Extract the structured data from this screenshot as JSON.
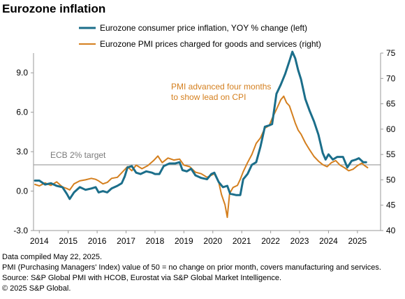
{
  "chart_data": {
    "type": "line",
    "title": "Eurozone inflation",
    "x_ticks": [
      "2014",
      "2015",
      "2016",
      "2017",
      "2018",
      "2019",
      "2020",
      "2021",
      "2022",
      "2023",
      "2024",
      "2025"
    ],
    "xlim": [
      2013.8,
      2025.8
    ],
    "left_axis": {
      "ylim": [
        -3.0,
        10.5
      ],
      "ticks": [
        "-3.0",
        "0.0",
        "3.0",
        "6.0",
        "9.0"
      ]
    },
    "right_axis": {
      "ylim": [
        40,
        75
      ],
      "ticks": [
        "40",
        "45",
        "50",
        "55",
        "60",
        "65",
        "70",
        "75"
      ]
    },
    "reference_line": {
      "label": "ECB 2% target",
      "value": 2.0,
      "axis": "left"
    },
    "annotation": {
      "lines": [
        "PMI advanced four months",
        "to show lead on CPI"
      ]
    },
    "series": [
      {
        "name": "Eurozone consumer price inflation, YOY % change (left)",
        "axis": "left",
        "color": "#1b6e8a",
        "points": [
          [
            2013.85,
            0.8
          ],
          [
            2014.0,
            0.8
          ],
          [
            2014.2,
            0.5
          ],
          [
            2014.4,
            0.6
          ],
          [
            2014.6,
            0.4
          ],
          [
            2014.8,
            0.3
          ],
          [
            2014.95,
            -0.2
          ],
          [
            2015.05,
            -0.6
          ],
          [
            2015.2,
            -0.1
          ],
          [
            2015.4,
            0.3
          ],
          [
            2015.6,
            0.1
          ],
          [
            2015.8,
            0.2
          ],
          [
            2015.95,
            0.3
          ],
          [
            2016.05,
            -0.1
          ],
          [
            2016.2,
            0.0
          ],
          [
            2016.35,
            -0.1
          ],
          [
            2016.5,
            0.2
          ],
          [
            2016.7,
            0.4
          ],
          [
            2016.85,
            0.6
          ],
          [
            2016.95,
            1.1
          ],
          [
            2017.05,
            1.8
          ],
          [
            2017.2,
            1.9
          ],
          [
            2017.35,
            1.4
          ],
          [
            2017.5,
            1.3
          ],
          [
            2017.7,
            1.5
          ],
          [
            2017.9,
            1.4
          ],
          [
            2018.0,
            1.3
          ],
          [
            2018.15,
            1.3
          ],
          [
            2018.3,
            1.9
          ],
          [
            2018.5,
            2.1
          ],
          [
            2018.7,
            2.1
          ],
          [
            2018.85,
            2.2
          ],
          [
            2018.95,
            1.6
          ],
          [
            2019.1,
            1.5
          ],
          [
            2019.25,
            1.7
          ],
          [
            2019.4,
            1.2
          ],
          [
            2019.6,
            1.0
          ],
          [
            2019.8,
            0.9
          ],
          [
            2019.95,
            1.3
          ],
          [
            2020.05,
            1.4
          ],
          [
            2020.2,
            0.7
          ],
          [
            2020.35,
            0.3
          ],
          [
            2020.5,
            0.4
          ],
          [
            2020.6,
            -0.2
          ],
          [
            2020.8,
            -0.3
          ],
          [
            2020.95,
            -0.3
          ],
          [
            2021.05,
            0.9
          ],
          [
            2021.2,
            1.3
          ],
          [
            2021.35,
            2.0
          ],
          [
            2021.5,
            2.2
          ],
          [
            2021.65,
            3.4
          ],
          [
            2021.8,
            4.9
          ],
          [
            2021.95,
            5.0
          ],
          [
            2022.05,
            5.1
          ],
          [
            2022.2,
            7.4
          ],
          [
            2022.35,
            8.1
          ],
          [
            2022.5,
            8.9
          ],
          [
            2022.65,
            9.9
          ],
          [
            2022.75,
            10.6
          ],
          [
            2022.85,
            10.1
          ],
          [
            2022.95,
            9.2
          ],
          [
            2023.05,
            8.5
          ],
          [
            2023.2,
            7.0
          ],
          [
            2023.35,
            6.1
          ],
          [
            2023.5,
            5.3
          ],
          [
            2023.65,
            4.3
          ],
          [
            2023.8,
            2.9
          ],
          [
            2023.9,
            2.4
          ],
          [
            2024.0,
            2.8
          ],
          [
            2024.15,
            2.4
          ],
          [
            2024.3,
            2.6
          ],
          [
            2024.5,
            2.6
          ],
          [
            2024.65,
            1.8
          ],
          [
            2024.8,
            2.3
          ],
          [
            2024.95,
            2.4
          ],
          [
            2025.05,
            2.5
          ],
          [
            2025.2,
            2.2
          ],
          [
            2025.3,
            2.2
          ]
        ]
      },
      {
        "name": "Eurozone PMI prices charged for goods and services (right)",
        "axis": "right",
        "color": "#d47f1e",
        "points": [
          [
            2013.85,
            49.1
          ],
          [
            2014.0,
            48.8
          ],
          [
            2014.2,
            49.4
          ],
          [
            2014.4,
            48.9
          ],
          [
            2014.6,
            49.6
          ],
          [
            2014.8,
            48.6
          ],
          [
            2014.95,
            48.3
          ],
          [
            2015.05,
            48.0
          ],
          [
            2015.2,
            49.2
          ],
          [
            2015.4,
            49.8
          ],
          [
            2015.6,
            50.0
          ],
          [
            2015.8,
            50.3
          ],
          [
            2015.95,
            50.1
          ],
          [
            2016.05,
            49.8
          ],
          [
            2016.2,
            49.2
          ],
          [
            2016.35,
            49.5
          ],
          [
            2016.5,
            50.3
          ],
          [
            2016.7,
            50.5
          ],
          [
            2016.85,
            51.4
          ],
          [
            2017.05,
            52.6
          ],
          [
            2017.2,
            51.8
          ],
          [
            2017.35,
            52.9
          ],
          [
            2017.55,
            52.2
          ],
          [
            2017.75,
            52.8
          ],
          [
            2017.95,
            53.8
          ],
          [
            2018.1,
            54.7
          ],
          [
            2018.25,
            53.4
          ],
          [
            2018.45,
            54.3
          ],
          [
            2018.65,
            53.9
          ],
          [
            2018.85,
            54.1
          ],
          [
            2019.0,
            52.9
          ],
          [
            2019.2,
            52.6
          ],
          [
            2019.4,
            51.5
          ],
          [
            2019.6,
            51.2
          ],
          [
            2019.8,
            50.5
          ],
          [
            2019.95,
            50.9
          ],
          [
            2020.05,
            51.2
          ],
          [
            2020.2,
            49.6
          ],
          [
            2020.3,
            47.1
          ],
          [
            2020.42,
            45.1
          ],
          [
            2020.5,
            42.6
          ],
          [
            2020.58,
            47.3
          ],
          [
            2020.7,
            48.5
          ],
          [
            2020.85,
            48.9
          ],
          [
            2020.95,
            50.1
          ],
          [
            2021.05,
            51.6
          ],
          [
            2021.2,
            53.4
          ],
          [
            2021.35,
            55.0
          ],
          [
            2021.5,
            57.2
          ],
          [
            2021.65,
            58.3
          ],
          [
            2021.8,
            60.2
          ],
          [
            2021.95,
            60.7
          ],
          [
            2022.05,
            62.1
          ],
          [
            2022.2,
            63.9
          ],
          [
            2022.35,
            65.8
          ],
          [
            2022.45,
            66.5
          ],
          [
            2022.55,
            65.2
          ],
          [
            2022.65,
            64.6
          ],
          [
            2022.75,
            62.9
          ],
          [
            2022.85,
            61.2
          ],
          [
            2022.95,
            59.8
          ],
          [
            2023.05,
            59.0
          ],
          [
            2023.2,
            57.3
          ],
          [
            2023.35,
            55.9
          ],
          [
            2023.5,
            54.6
          ],
          [
            2023.65,
            53.7
          ],
          [
            2023.8,
            53.0
          ],
          [
            2023.95,
            52.6
          ],
          [
            2024.1,
            53.4
          ],
          [
            2024.25,
            53.8
          ],
          [
            2024.4,
            52.9
          ],
          [
            2024.55,
            52.4
          ],
          [
            2024.7,
            51.8
          ],
          [
            2024.85,
            52.1
          ],
          [
            2025.0,
            52.8
          ],
          [
            2025.15,
            53.3
          ],
          [
            2025.25,
            52.8
          ],
          [
            2025.35,
            52.4
          ]
        ]
      }
    ]
  },
  "footer": [
    "Data compiled May 22, 2025.",
    "PMI (Purchasing Managers' Index) value of 50 = no change on prior month, covers manufacturing and services.",
    "Source: S&P Global PMI with HCOB, Eurostat via S&P Global Market Intelligence.",
    "© 2025 S&P Global."
  ]
}
